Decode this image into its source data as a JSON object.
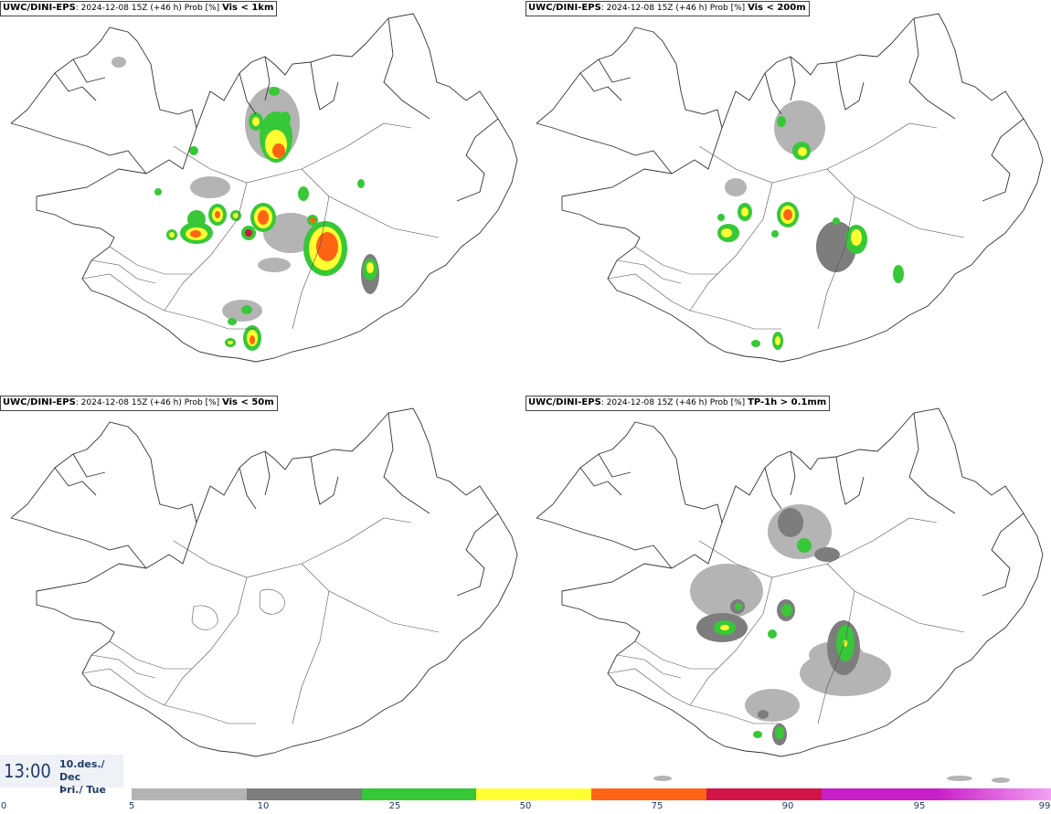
{
  "panels": [
    {
      "model": "UWC/DINI-EPS",
      "info": "2024-12-08 15Z (+46 h) Prob [%]",
      "variable": "Vis < 1km"
    },
    {
      "model": "UWC/DINI-EPS",
      "info": "2024-12-08 15Z (+46 h) Prob [%]",
      "variable": "Vis < 200m"
    },
    {
      "model": "UWC/DINI-EPS",
      "info": "2024-12-08 15Z (+46 h) Prob [%]",
      "variable": "Vis < 50m"
    },
    {
      "model": "UWC/DINI-EPS",
      "info": "2024-12-08 15Z (+46 h) Prob [%]",
      "variable": "TP-1h > 0.1mm"
    }
  ],
  "valid_time": {
    "time": "13:00",
    "date_line1": "10.des./ Dec",
    "date_line2": "Þri./ Tue"
  },
  "legend": {
    "ticks": [
      "0",
      "5",
      "10",
      "25",
      "50",
      "75",
      "90",
      "95",
      "99"
    ],
    "colors": [
      "#b4b4b4",
      "#7d7d7d",
      "#37c837",
      "#ffff32",
      "#ff6414",
      "#d21446",
      "#c81ec8",
      "#f5a0f5"
    ]
  },
  "colors": {
    "p5": "#b4b4b4",
    "p10": "#7d7d7d",
    "p25": "#37c837",
    "p50": "#ffff32",
    "p75": "#ff6414",
    "p90": "#d21446"
  }
}
